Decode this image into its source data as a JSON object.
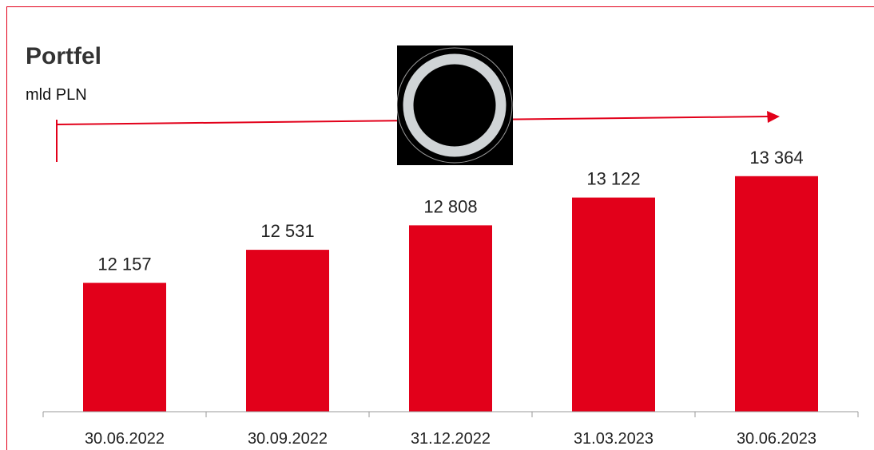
{
  "header": {
    "title": "Portfel",
    "unit": "mld PLN"
  },
  "colors": {
    "bar": "#e2001a",
    "frame": "#e2001a",
    "arrow": "#e2001a",
    "axis": "#999999",
    "text": "#222222"
  },
  "emblem": {
    "icon": "ring-icon"
  },
  "chart_data": {
    "type": "bar",
    "title": "Portfel",
    "ylabel": "mld PLN",
    "xlabel": "",
    "categories": [
      "30.06.2022",
      "30.09.2022",
      "31.12.2022",
      "31.03.2023",
      "30.06.2023"
    ],
    "values": [
      12157,
      12531,
      12808,
      13122,
      13364
    ],
    "value_labels": [
      "12 157",
      "12 531",
      "12 808",
      "13 122",
      "13 364"
    ],
    "ylim": [
      10700,
      13750
    ],
    "grid": false,
    "legend": "none"
  }
}
